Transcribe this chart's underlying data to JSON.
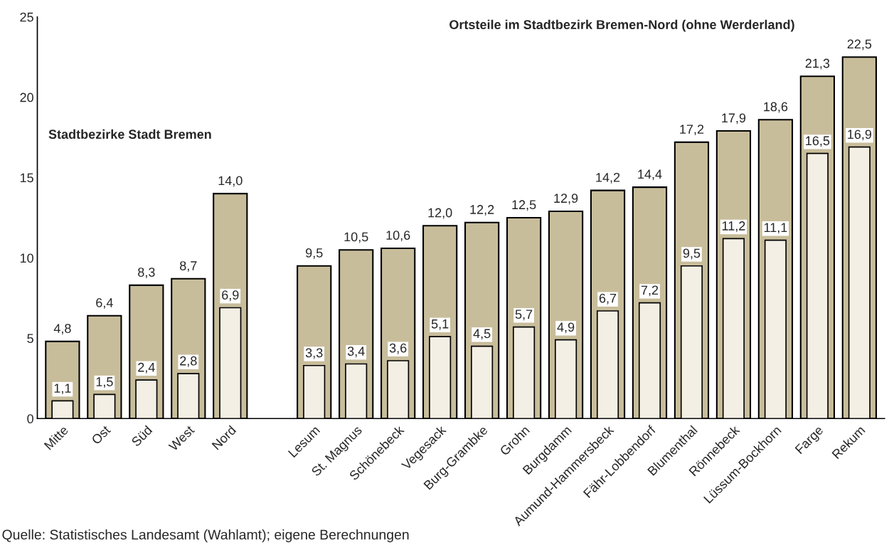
{
  "chart_data": {
    "type": "bar",
    "categories": [
      "Mitte",
      "Ost",
      "Süd",
      "West",
      "Nord",
      null,
      "Lesum",
      "St. Magnus",
      "Schönebeck",
      "Vegesack",
      "Burg-Grambke",
      "Grohn",
      "Burgdamm",
      "Aumund-Hammersbeck",
      "Fähr-Lobbendorf",
      "Blumenthal",
      "Rönnebeck",
      "Lüssum-Bockhorn",
      "Farge",
      "Rekum"
    ],
    "series": [
      {
        "color": "#c8bd9b",
        "values": [
          4.8,
          6.4,
          8.3,
          8.7,
          14.0,
          null,
          9.5,
          10.5,
          10.6,
          12.0,
          12.2,
          12.5,
          12.9,
          14.2,
          14.4,
          17.2,
          17.9,
          18.6,
          21.3,
          22.5
        ],
        "value_labels": [
          "4,8",
          "6,4",
          "8,3",
          "8,7",
          "14,0",
          null,
          "9,5",
          "10,5",
          "10,6",
          "12,0",
          "12,2",
          "12,5",
          "12,9",
          "14,2",
          "14,4",
          "17,2",
          "17,9",
          "18,6",
          "21,3",
          "22,5"
        ]
      },
      {
        "color": "#f3efe4",
        "values": [
          1.1,
          1.5,
          2.4,
          2.8,
          6.9,
          null,
          3.3,
          3.4,
          3.6,
          5.1,
          4.5,
          5.7,
          4.9,
          6.7,
          7.2,
          9.5,
          11.2,
          11.1,
          16.5,
          16.9
        ],
        "value_labels": [
          "1,1",
          "1,5",
          "2,4",
          "2,8",
          "6,9",
          null,
          "3,3",
          "3,4",
          "3,6",
          "5,1",
          "4,5",
          "5,7",
          "4,9",
          "6,7",
          "7,2",
          "9,5",
          "11,2",
          "11,1",
          "16,5",
          "16,9"
        ]
      }
    ],
    "ylim": [
      0,
      25
    ],
    "yticks": [
      0,
      5,
      10,
      15,
      20,
      25
    ],
    "grid": false,
    "legend": false,
    "annotations": [
      "Stadtbezirke Stadt Bremen",
      "Ortsteile im Stadtbezirk Bremen-Nord (ohne Werderland)",
      "Quelle: Statistisches Landesamt (Wahlamt); eigene Berechnungen"
    ]
  }
}
